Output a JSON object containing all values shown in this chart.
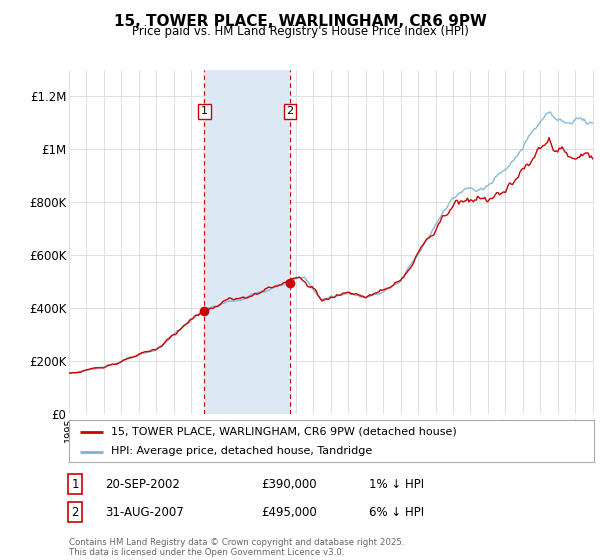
{
  "title": "15, TOWER PLACE, WARLINGHAM, CR6 9PW",
  "subtitle": "Price paid vs. HM Land Registry's House Price Index (HPI)",
  "legend_line1": "15, TOWER PLACE, WARLINGHAM, CR6 9PW (detached house)",
  "legend_line2": "HPI: Average price, detached house, Tandridge",
  "annotation1_label": "1",
  "annotation1_date": "20-SEP-2002",
  "annotation1_price": "£390,000",
  "annotation1_hpi": "1% ↓ HPI",
  "annotation2_label": "2",
  "annotation2_date": "31-AUG-2007",
  "annotation2_price": "£495,000",
  "annotation2_hpi": "6% ↓ HPI",
  "footer": "Contains HM Land Registry data © Crown copyright and database right 2025.\nThis data is licensed under the Open Government Licence v3.0.",
  "hpi_color": "#7ab3d4",
  "price_color": "#cc0000",
  "background_color": "#ffffff",
  "plot_bg_color": "#ffffff",
  "shaded_color": "#dce9f5",
  "grid_color": "#e0e0e0",
  "ylim": [
    0,
    1300000
  ],
  "yticks": [
    0,
    200000,
    400000,
    600000,
    800000,
    1000000,
    1200000
  ],
  "ytick_labels": [
    "£0",
    "£200K",
    "£400K",
    "£600K",
    "£800K",
    "£1M",
    "£1.2M"
  ],
  "year_start": 1995,
  "year_end": 2025,
  "purchase1_year": 2002.75,
  "purchase2_year": 2007.67,
  "purchase1_price": 390000,
  "purchase2_price": 495000
}
